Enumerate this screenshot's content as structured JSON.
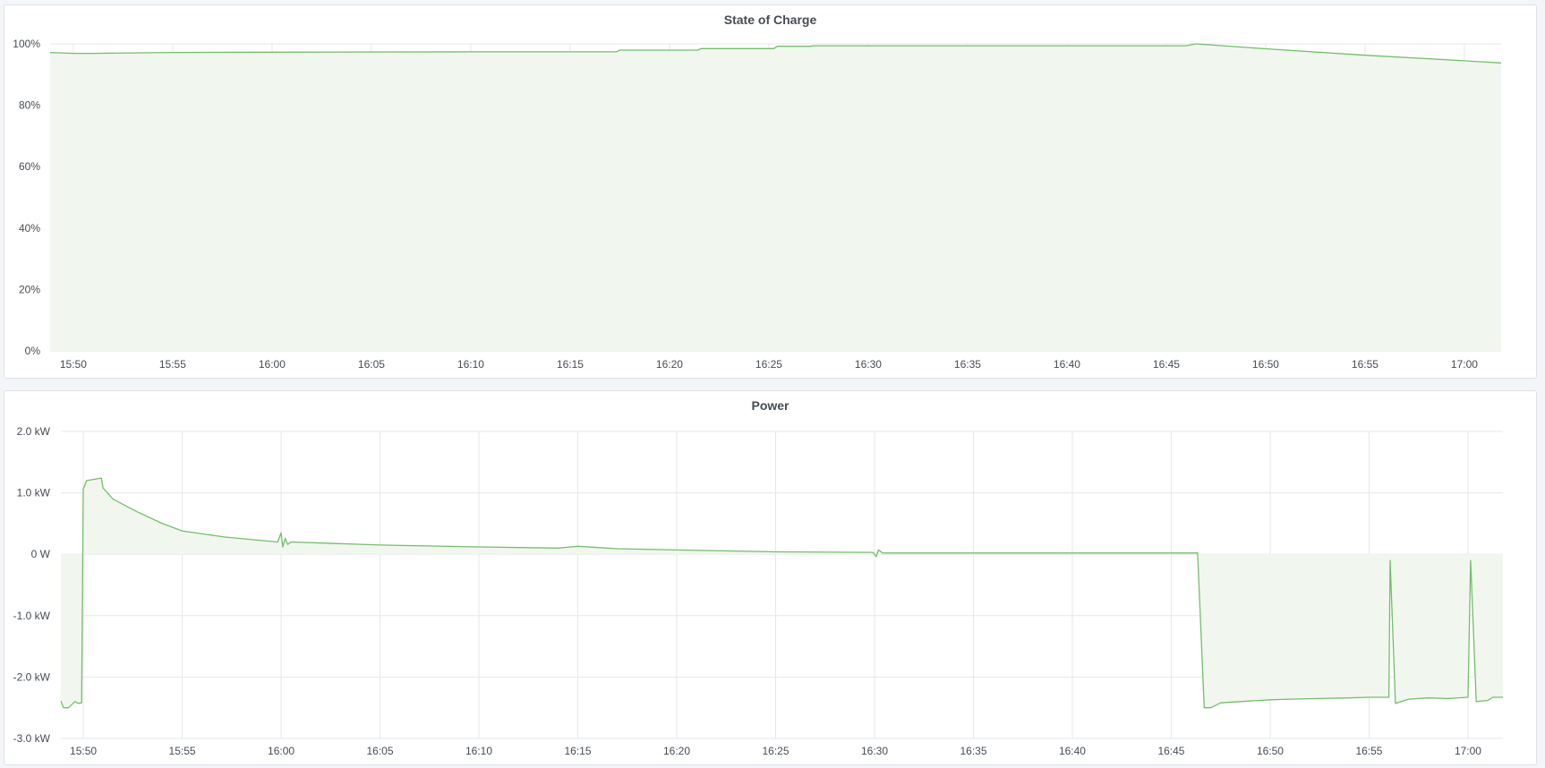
{
  "colors": {
    "series": "#73bf69",
    "fill": "#f1f6ef",
    "grid": "#e6e7ea",
    "text": "#464c54"
  },
  "chart_data": [
    {
      "type": "area",
      "title": "State of Charge",
      "xlabel": "",
      "ylabel": "",
      "unit": "%",
      "xlim": [
        "15:48:50",
        "17:01:51"
      ],
      "ylim": [
        0,
        100
      ],
      "yticks": [
        0,
        20,
        40,
        60,
        80,
        100
      ],
      "ytick_labels": [
        "0%",
        "20%",
        "40%",
        "60%",
        "80%",
        "100%"
      ],
      "xticks": [
        "15:50",
        "15:55",
        "16:00",
        "16:05",
        "16:10",
        "16:15",
        "16:20",
        "16:25",
        "16:30",
        "16:35",
        "16:40",
        "16:45",
        "16:50",
        "16:55",
        "17:00"
      ],
      "grid": true,
      "points": [
        [
          "15:48:50",
          97.2
        ],
        [
          "15:50:00",
          96.9
        ],
        [
          "15:51:00",
          96.9
        ],
        [
          "15:55:00",
          97.2
        ],
        [
          "16:00:00",
          97.3
        ],
        [
          "16:10:00",
          97.4
        ],
        [
          "16:17:20",
          97.4
        ],
        [
          "16:17:30",
          97.95
        ],
        [
          "16:21:25",
          97.95
        ],
        [
          "16:21:35",
          98.45
        ],
        [
          "16:25:15",
          98.45
        ],
        [
          "16:25:25",
          99.2
        ],
        [
          "16:27:05",
          99.2
        ],
        [
          "16:27:15",
          99.4
        ],
        [
          "16:46:00",
          99.4
        ],
        [
          "16:46:30",
          100
        ],
        [
          "16:50:00",
          98.4
        ],
        [
          "16:55:00",
          96.3
        ],
        [
          "17:00:00",
          94.5
        ],
        [
          "17:01:51",
          93.8
        ]
      ]
    },
    {
      "type": "area",
      "title": "Power",
      "xlabel": "",
      "ylabel": "",
      "unit": "kW",
      "xlim": [
        "15:48:52",
        "17:01:46"
      ],
      "ylim": [
        -3,
        2
      ],
      "yticks": [
        -3,
        -2,
        -1,
        0,
        1,
        2
      ],
      "ytick_labels": [
        "-3.0 kW",
        "-2.0 kW",
        "-1.0 kW",
        "0 W",
        "1.0 kW",
        "2.0 kW"
      ],
      "xticks": [
        "15:50",
        "15:55",
        "16:00",
        "16:05",
        "16:10",
        "16:15",
        "16:20",
        "16:25",
        "16:30",
        "16:35",
        "16:40",
        "16:45",
        "16:50",
        "16:55",
        "17:00"
      ],
      "grid": true,
      "points": [
        [
          "15:48:52",
          -2.39
        ],
        [
          "15:49:00",
          -2.5
        ],
        [
          "15:49:15",
          -2.5
        ],
        [
          "15:49:35",
          -2.4
        ],
        [
          "15:49:45",
          -2.43
        ],
        [
          "15:49:55",
          -2.42
        ],
        [
          "15:50:00",
          1.06
        ],
        [
          "15:50:10",
          1.2
        ],
        [
          "15:50:55",
          1.24
        ],
        [
          "15:51:00",
          1.08
        ],
        [
          "15:51:30",
          0.9
        ],
        [
          "15:52:40",
          0.7
        ],
        [
          "15:54:00",
          0.5
        ],
        [
          "15:55:00",
          0.38
        ],
        [
          "15:57:10",
          0.28
        ],
        [
          "15:59:50",
          0.2
        ],
        [
          "16:00:00",
          0.35
        ],
        [
          "16:00:05",
          0.12
        ],
        [
          "16:00:12",
          0.26
        ],
        [
          "16:00:20",
          0.16
        ],
        [
          "16:00:30",
          0.2
        ],
        [
          "16:05:00",
          0.15
        ],
        [
          "16:10:00",
          0.12
        ],
        [
          "16:14:00",
          0.1
        ],
        [
          "16:15:00",
          0.13
        ],
        [
          "16:17:00",
          0.09
        ],
        [
          "16:20:00",
          0.07
        ],
        [
          "16:25:00",
          0.04
        ],
        [
          "16:29:55",
          0.03
        ],
        [
          "16:30:05",
          -0.04
        ],
        [
          "16:30:12",
          0.07
        ],
        [
          "16:30:25",
          0.02
        ],
        [
          "16:35:00",
          0.02
        ],
        [
          "16:40:00",
          0.02
        ],
        [
          "16:46:20",
          0.02
        ],
        [
          "16:46:40",
          -2.5
        ],
        [
          "16:47:00",
          -2.5
        ],
        [
          "16:47:30",
          -2.42
        ],
        [
          "16:48:30",
          -2.4
        ],
        [
          "16:49:30",
          -2.38
        ],
        [
          "16:50:00",
          -2.37
        ],
        [
          "16:51:00",
          -2.36
        ],
        [
          "16:52:30",
          -2.35
        ],
        [
          "16:54:00",
          -2.34
        ],
        [
          "16:55:00",
          -2.33
        ],
        [
          "16:56:00",
          -2.33
        ],
        [
          "16:56:04",
          -0.1
        ],
        [
          "16:56:20",
          -2.43
        ],
        [
          "16:57:00",
          -2.36
        ],
        [
          "16:58:00",
          -2.34
        ],
        [
          "16:59:00",
          -2.35
        ],
        [
          "17:00:00",
          -2.33
        ],
        [
          "17:00:08",
          -0.1
        ],
        [
          "17:00:25",
          -2.4
        ],
        [
          "17:01:00",
          -2.38
        ],
        [
          "17:01:15",
          -2.33
        ],
        [
          "17:01:46",
          -2.33
        ]
      ]
    }
  ]
}
